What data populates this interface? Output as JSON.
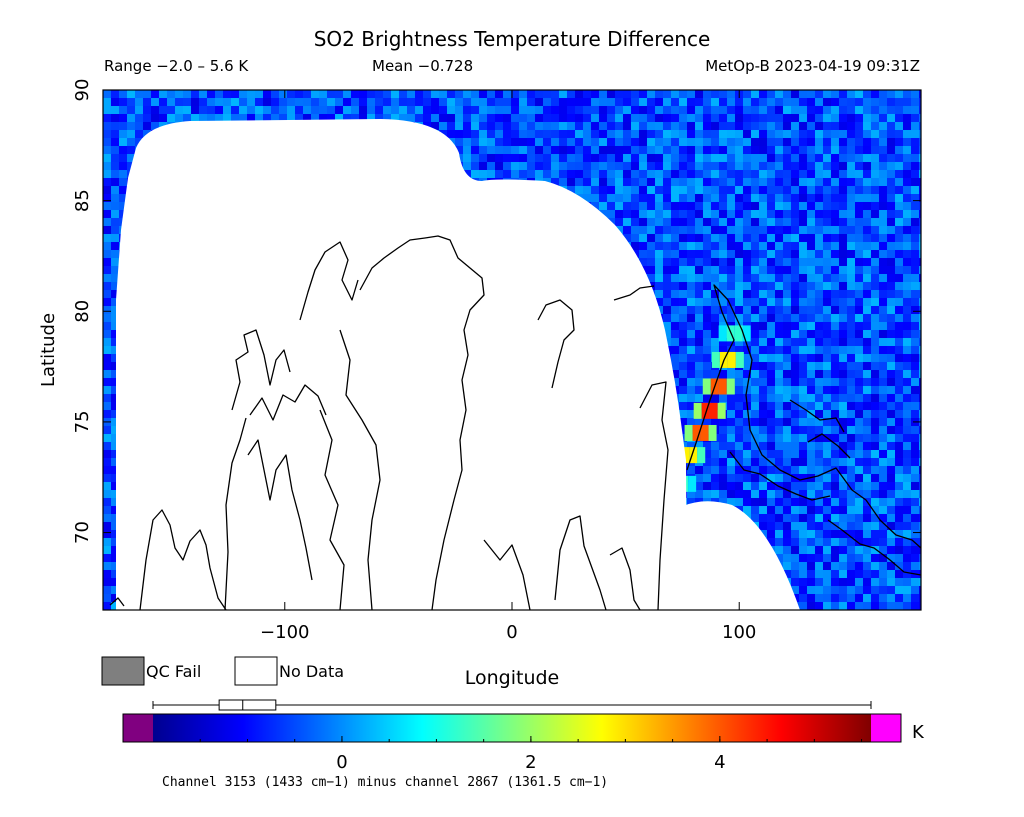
{
  "chart_data": {
    "type": "heatmap",
    "title": "SO2 Brightness Temperature Difference",
    "subtitle_left": "Range −2.0 – 5.6 K",
    "subtitle_center": "Mean −0.728",
    "subtitle_right": "MetOp-B 2023-04-19 09:31Z",
    "xlabel": "Longitude",
    "ylabel": "Latitude",
    "xlim": [
      -180,
      180
    ],
    "ylim": [
      66.5,
      90
    ],
    "xticks": [
      -100,
      0,
      100
    ],
    "xtick_labels": [
      "−100",
      "0",
      "100"
    ],
    "yticks": [
      70,
      75,
      80,
      85,
      90
    ],
    "ytick_labels": [
      "70",
      "75",
      "80",
      "85",
      "90"
    ],
    "background_range": [
      -1.3,
      0.3
    ],
    "plume": {
      "points": [
        [
          74,
          72.2
        ],
        [
          78,
          73.5
        ],
        [
          83,
          74.5
        ],
        [
          87,
          75.5
        ],
        [
          91,
          76.6
        ],
        [
          95,
          77.8
        ],
        [
          98,
          79
        ]
      ],
      "peak_value": 5.6
    },
    "legend": {
      "qc_fail_label": "QC Fail",
      "qc_fail_color": "#7f7f7f",
      "no_data_label": "No Data",
      "no_data_color": "#ffffff"
    },
    "colorbar": {
      "min": -2.0,
      "max": 5.6,
      "ticks": [
        0,
        2,
        4
      ],
      "tick_labels": [
        "0",
        "2",
        "4"
      ],
      "unit_label": "K",
      "underflow_color": "#800080",
      "overflow_color": "#ff00ff",
      "box_whisker": {
        "min": -2.0,
        "q1": -1.3,
        "median": -1.05,
        "q3": -0.7,
        "max": 5.6
      },
      "caption": "Channel 3153 (1433 cm−1) minus channel 2867 (1361.5 cm−1)"
    }
  }
}
